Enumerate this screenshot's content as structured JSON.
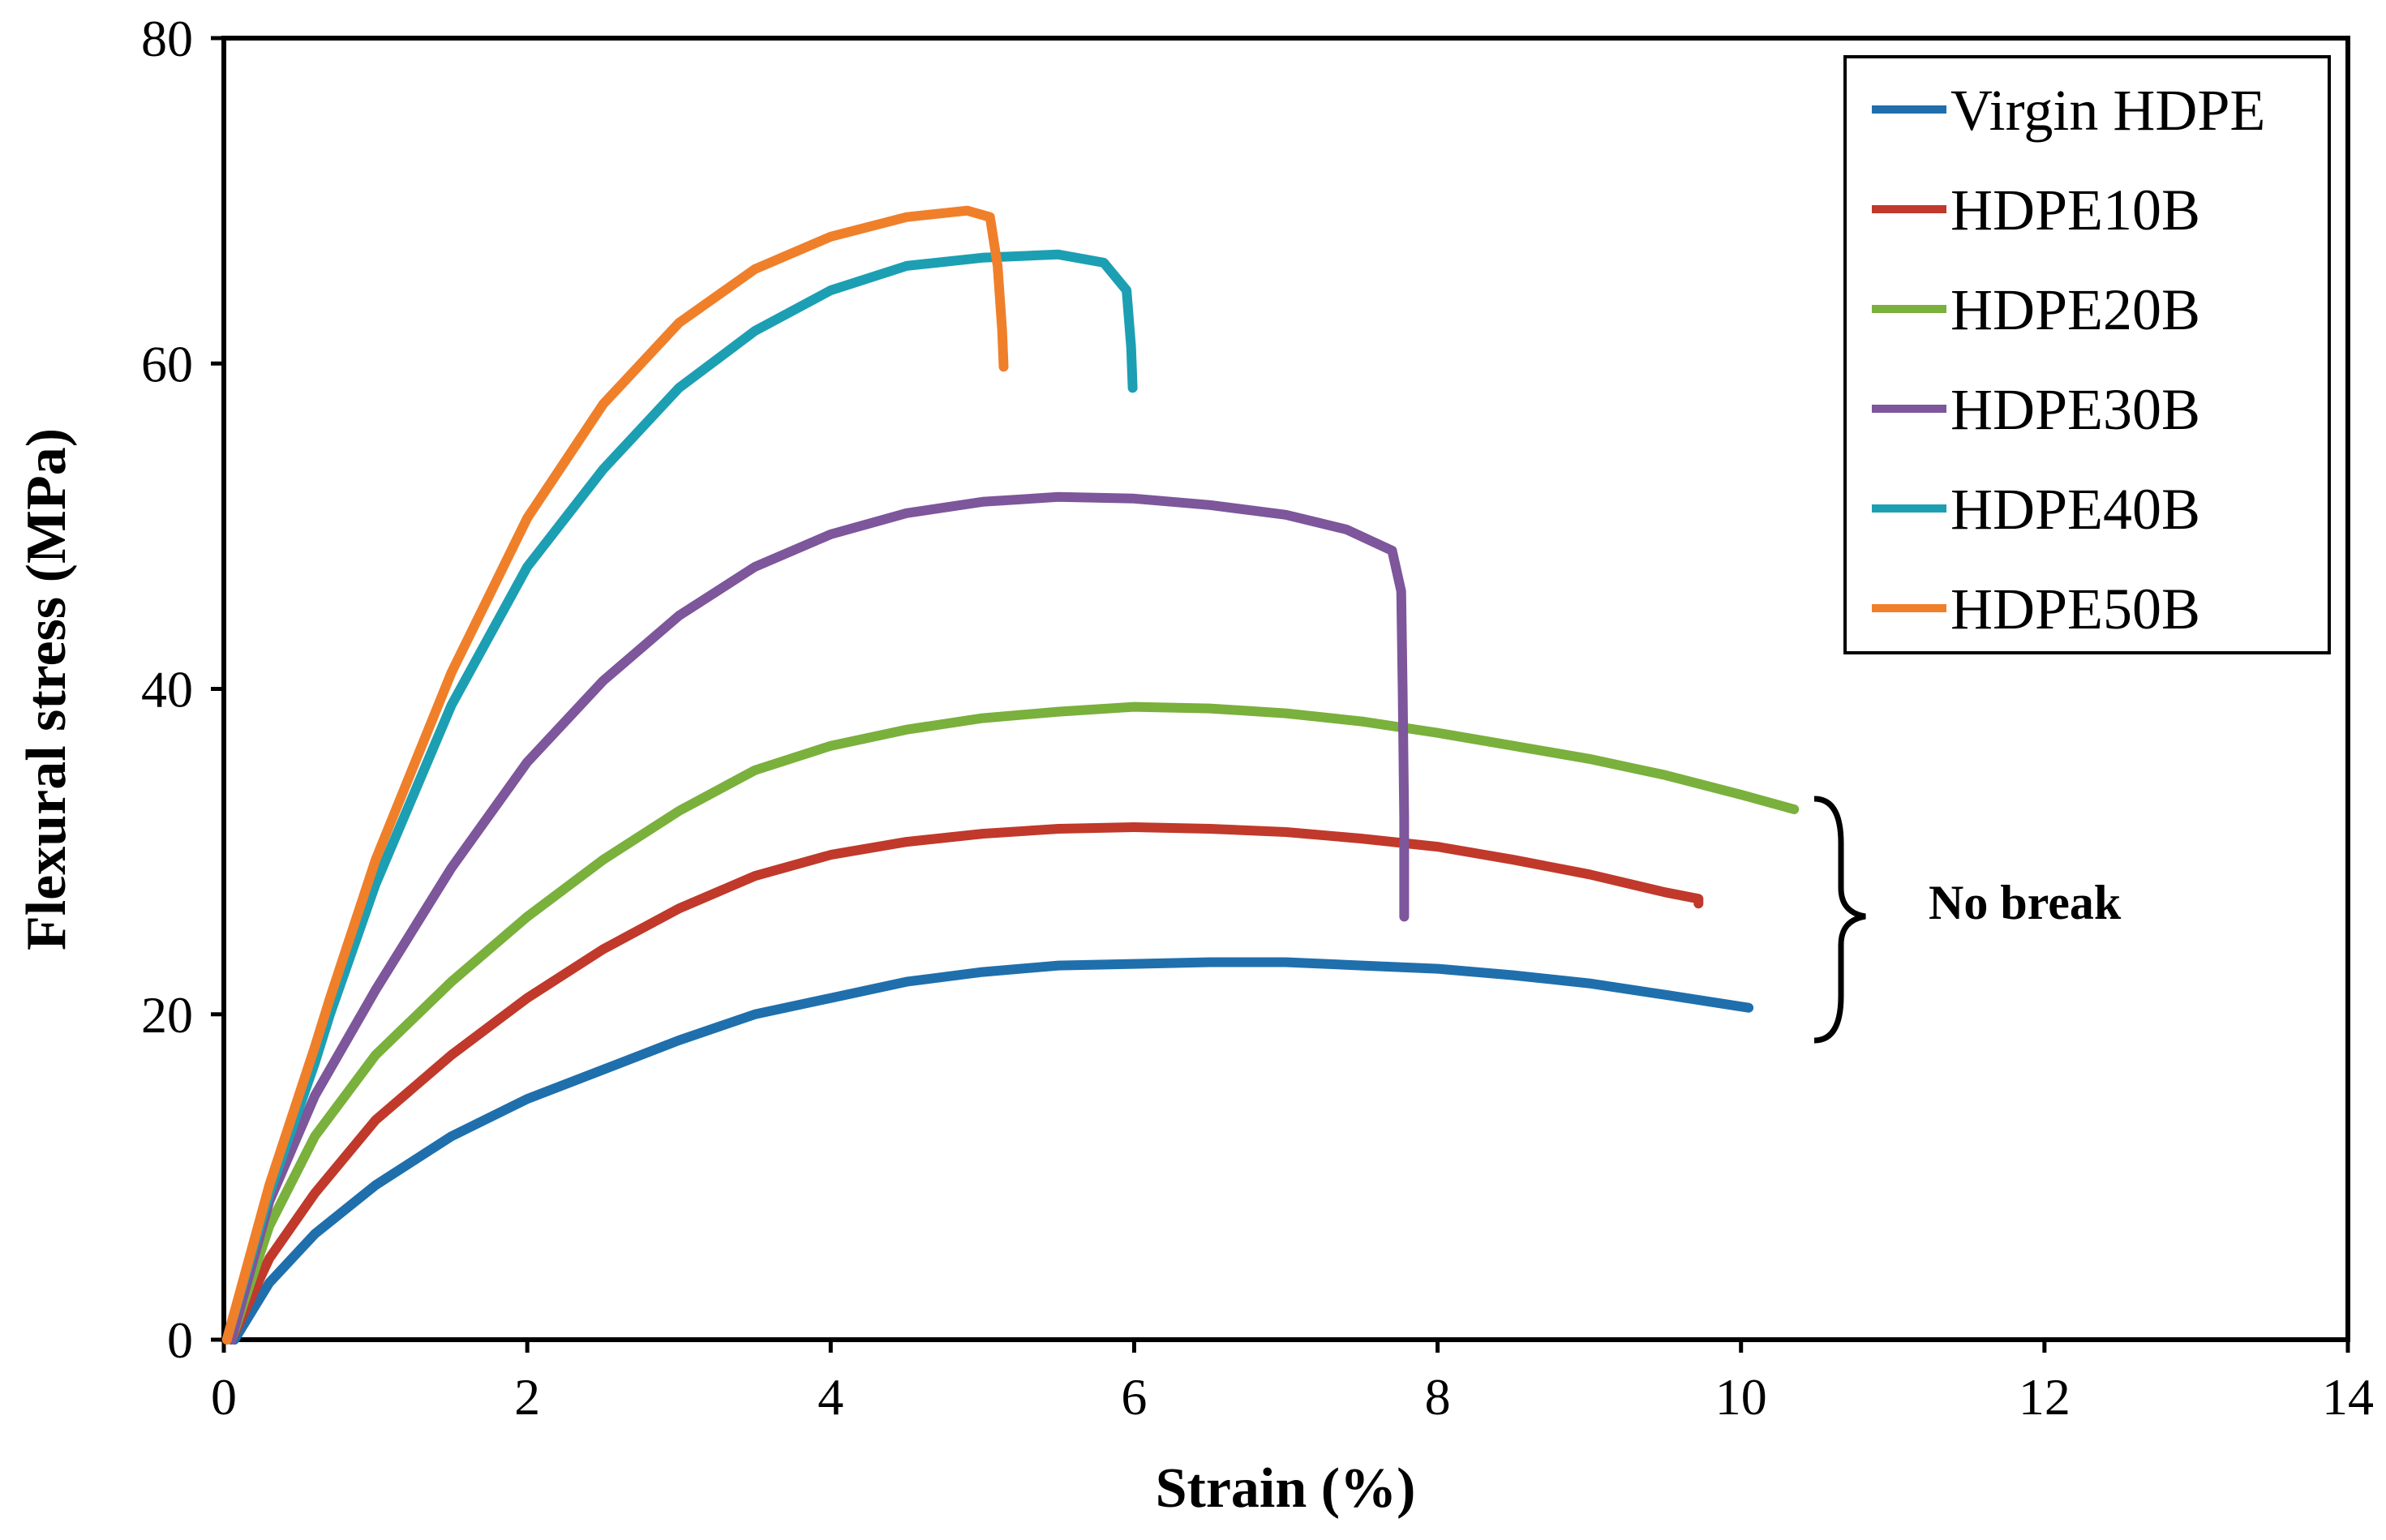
{
  "chart_data": {
    "type": "line",
    "title": "",
    "xlabel": "Strain (%)",
    "ylabel": "Flexural  stress  (MPa)",
    "xlim": [
      0,
      14
    ],
    "ylim": [
      0,
      80
    ],
    "xticks": [
      "0",
      "2",
      "4",
      "6",
      "8",
      "10",
      "12",
      "14"
    ],
    "yticks": [
      "0",
      "20",
      "40",
      "60",
      "80"
    ],
    "legend_position": "top-right",
    "annotation": "No break",
    "series": [
      {
        "name": "Virgin HDPE",
        "color": "#1f6fad",
        "points": [
          [
            0.07,
            0
          ],
          [
            0.3,
            3.5
          ],
          [
            0.6,
            6.5
          ],
          [
            1.0,
            9.5
          ],
          [
            1.5,
            12.5
          ],
          [
            2.0,
            14.8
          ],
          [
            2.5,
            16.6
          ],
          [
            3.0,
            18.4
          ],
          [
            3.5,
            20.0
          ],
          [
            4.0,
            21.0
          ],
          [
            4.5,
            22.0
          ],
          [
            5.0,
            22.6
          ],
          [
            5.5,
            23.0
          ],
          [
            6.0,
            23.1
          ],
          [
            6.5,
            23.2
          ],
          [
            7.0,
            23.2
          ],
          [
            7.5,
            23.0
          ],
          [
            8.0,
            22.8
          ],
          [
            8.5,
            22.4
          ],
          [
            9.0,
            21.9
          ],
          [
            9.5,
            21.2
          ],
          [
            10.05,
            20.4
          ]
        ]
      },
      {
        "name": "HDPE10B",
        "color": "#c0392b",
        "points": [
          [
            0.05,
            0
          ],
          [
            0.3,
            5
          ],
          [
            0.6,
            9
          ],
          [
            1.0,
            13.5
          ],
          [
            1.5,
            17.5
          ],
          [
            2.0,
            21
          ],
          [
            2.5,
            24
          ],
          [
            3.0,
            26.5
          ],
          [
            3.5,
            28.5
          ],
          [
            4.0,
            29.8
          ],
          [
            4.5,
            30.6
          ],
          [
            5.0,
            31.1
          ],
          [
            5.5,
            31.4
          ],
          [
            6.0,
            31.5
          ],
          [
            6.5,
            31.4
          ],
          [
            7.0,
            31.2
          ],
          [
            7.5,
            30.8
          ],
          [
            8.0,
            30.3
          ],
          [
            8.5,
            29.5
          ],
          [
            9.0,
            28.6
          ],
          [
            9.5,
            27.5
          ],
          [
            9.72,
            27.1
          ],
          [
            9.72,
            26.8
          ]
        ]
      },
      {
        "name": "HDPE20B",
        "color": "#7ab03c",
        "points": [
          [
            0.05,
            0
          ],
          [
            0.3,
            7
          ],
          [
            0.6,
            12.5
          ],
          [
            1.0,
            17.5
          ],
          [
            1.5,
            22
          ],
          [
            2.0,
            26
          ],
          [
            2.5,
            29.5
          ],
          [
            3.0,
            32.5
          ],
          [
            3.5,
            35
          ],
          [
            4.0,
            36.5
          ],
          [
            4.5,
            37.5
          ],
          [
            5.0,
            38.2
          ],
          [
            5.5,
            38.6
          ],
          [
            6.0,
            38.9
          ],
          [
            6.5,
            38.8
          ],
          [
            7.0,
            38.5
          ],
          [
            7.5,
            38.0
          ],
          [
            8.0,
            37.3
          ],
          [
            8.5,
            36.5
          ],
          [
            9.0,
            35.7
          ],
          [
            9.5,
            34.7
          ],
          [
            10.0,
            33.5
          ],
          [
            10.35,
            32.6
          ]
        ]
      },
      {
        "name": "HDPE30B",
        "color": "#7d569b",
        "points": [
          [
            0.05,
            0
          ],
          [
            0.3,
            8.5
          ],
          [
            0.6,
            15
          ],
          [
            1.0,
            21.5
          ],
          [
            1.5,
            29
          ],
          [
            2.0,
            35.5
          ],
          [
            2.5,
            40.5
          ],
          [
            3.0,
            44.5
          ],
          [
            3.5,
            47.5
          ],
          [
            4.0,
            49.5
          ],
          [
            4.5,
            50.8
          ],
          [
            5.0,
            51.5
          ],
          [
            5.5,
            51.8
          ],
          [
            6.0,
            51.7
          ],
          [
            6.5,
            51.3
          ],
          [
            7.0,
            50.7
          ],
          [
            7.4,
            49.8
          ],
          [
            7.7,
            48.5
          ],
          [
            7.76,
            46
          ],
          [
            7.77,
            40
          ],
          [
            7.78,
            32
          ],
          [
            7.78,
            26
          ]
        ]
      },
      {
        "name": "HDPE40B",
        "color": "#1c9fb3",
        "points": [
          [
            0.02,
            0
          ],
          [
            0.3,
            9
          ],
          [
            0.6,
            17
          ],
          [
            0.7,
            20
          ],
          [
            1.0,
            28
          ],
          [
            1.5,
            39
          ],
          [
            2.0,
            47.5
          ],
          [
            2.5,
            53.5
          ],
          [
            3.0,
            58.5
          ],
          [
            3.5,
            62
          ],
          [
            4.0,
            64.5
          ],
          [
            4.5,
            66
          ],
          [
            5.0,
            66.5
          ],
          [
            5.5,
            66.7
          ],
          [
            5.8,
            66.2
          ],
          [
            5.95,
            64.5
          ],
          [
            5.98,
            61
          ],
          [
            5.99,
            58.5
          ]
        ]
      },
      {
        "name": "HDPE50B",
        "color": "#f07f2a",
        "points": [
          [
            0.02,
            0
          ],
          [
            0.3,
            9.5
          ],
          [
            0.6,
            18
          ],
          [
            0.7,
            21
          ],
          [
            1.0,
            29.5
          ],
          [
            1.5,
            41
          ],
          [
            2.0,
            50.5
          ],
          [
            2.5,
            57.5
          ],
          [
            3.0,
            62.5
          ],
          [
            3.5,
            65.8
          ],
          [
            4.0,
            67.8
          ],
          [
            4.5,
            69
          ],
          [
            4.9,
            69.4
          ],
          [
            5.05,
            69.0
          ],
          [
            5.1,
            66
          ],
          [
            5.13,
            62
          ],
          [
            5.14,
            59.8
          ]
        ]
      }
    ]
  }
}
